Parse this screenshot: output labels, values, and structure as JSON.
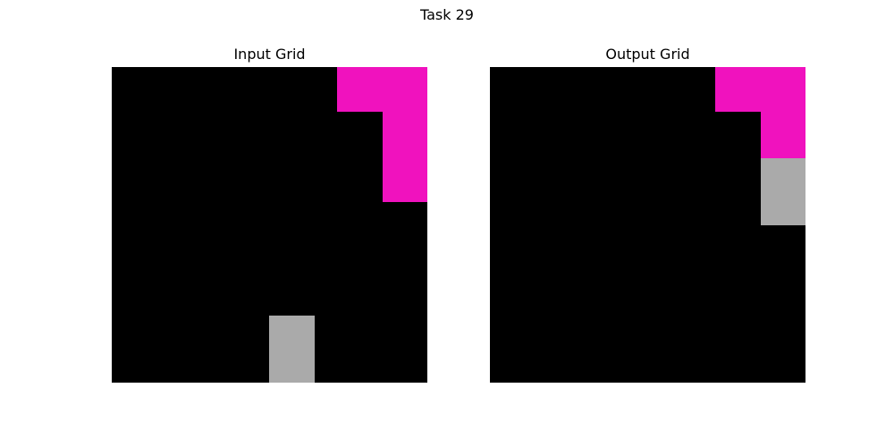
{
  "title": "Task 29",
  "panels": [
    {
      "title": "Input Grid",
      "grid": [
        [
          0,
          0,
          0,
          0,
          0,
          6,
          6
        ],
        [
          0,
          0,
          0,
          0,
          0,
          0,
          6
        ],
        [
          0,
          0,
          0,
          0,
          0,
          0,
          6
        ],
        [
          0,
          0,
          0,
          0,
          0,
          0,
          0
        ],
        [
          0,
          0,
          0,
          0,
          0,
          0,
          0
        ],
        [
          0,
          0,
          0,
          0,
          0,
          0,
          0
        ],
        [
          0,
          0,
          0,
          0,
          0,
          0,
          0
        ]
      ]
    },
    {
      "title": "Output Grid",
      "grid": [
        [
          0,
          0,
          0,
          0,
          0,
          6,
          6
        ],
        [
          0,
          0,
          0,
          0,
          0,
          0,
          6
        ],
        [
          0,
          0,
          0,
          0,
          0,
          0,
          6
        ],
        [
          0,
          0,
          0,
          0,
          0,
          0,
          0
        ],
        [
          0,
          0,
          0,
          0,
          0,
          0,
          0
        ],
        [
          0,
          0,
          0,
          0,
          0,
          0,
          0
        ],
        [
          0,
          0,
          0,
          0,
          0,
          0,
          0
        ]
      ]
    }
  ],
  "grid_overlays": {
    "input": [
      {
        "color_key": 5,
        "rows": [
          7,
          8,
          9
        ],
        "cols": [
          3.5,
          4.5
        ]
      }
    ],
    "output": [
      {
        "color_key": 5,
        "rows": [
          3,
          4
        ],
        "cols": [
          6,
          7
        ]
      }
    ]
  },
  "palette": {
    "0": "#000000",
    "5": "#aaaaaa",
    "6": "#f012be"
  }
}
